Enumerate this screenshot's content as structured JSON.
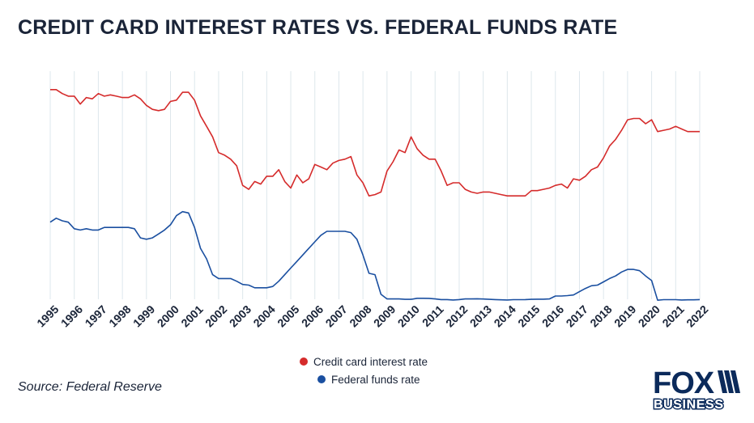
{
  "title": "CREDIT CARD INTEREST RATES VS. FEDERAL FUNDS RATE",
  "source": "Source: Federal Reserve",
  "logo": {
    "text": "FOX BUSINESS"
  },
  "colors": {
    "credit": "#d52b2b",
    "fed": "#1a4fa0",
    "grid": "#dde7ec",
    "text": "#1a2438"
  },
  "chart_data": {
    "type": "line",
    "title": "CREDIT CARD INTEREST RATES VS. FEDERAL FUNDS RATE",
    "xlabel": "",
    "ylabel": "",
    "xlim": [
      1995,
      2022
    ],
    "x_ticks": [
      "1995",
      "1996",
      "1997",
      "1998",
      "1999",
      "2000",
      "2001",
      "2002",
      "2003",
      "2004",
      "2005",
      "2006",
      "2007",
      "2008",
      "2009",
      "2010",
      "2011",
      "2012",
      "2013",
      "2014",
      "2015",
      "2016",
      "2017",
      "2018",
      "2019",
      "2020",
      "2021",
      "2022"
    ],
    "ylim": [
      0,
      18
    ],
    "y_axis_labels_shown": false,
    "grid": "vertical",
    "legend_position": "bottom-center",
    "series": [
      {
        "name": "Credit card interest rate",
        "color": "#d52b2b",
        "points": [
          [
            1995.0,
            16.1
          ],
          [
            1995.25,
            16.1
          ],
          [
            1995.5,
            15.8
          ],
          [
            1995.75,
            15.6
          ],
          [
            1996.0,
            15.6
          ],
          [
            1996.25,
            15.0
          ],
          [
            1996.5,
            15.5
          ],
          [
            1996.75,
            15.4
          ],
          [
            1997.0,
            15.8
          ],
          [
            1997.25,
            15.6
          ],
          [
            1997.5,
            15.7
          ],
          [
            1997.75,
            15.6
          ],
          [
            1998.0,
            15.5
          ],
          [
            1998.25,
            15.5
          ],
          [
            1998.5,
            15.7
          ],
          [
            1998.75,
            15.4
          ],
          [
            1999.0,
            14.9
          ],
          [
            1999.25,
            14.6
          ],
          [
            1999.5,
            14.5
          ],
          [
            1999.75,
            14.6
          ],
          [
            2000.0,
            15.2
          ],
          [
            2000.25,
            15.3
          ],
          [
            2000.5,
            15.9
          ],
          [
            2000.75,
            15.9
          ],
          [
            2001.0,
            15.3
          ],
          [
            2001.25,
            14.1
          ],
          [
            2001.5,
            13.3
          ],
          [
            2001.75,
            12.5
          ],
          [
            2002.0,
            11.3
          ],
          [
            2002.25,
            11.1
          ],
          [
            2002.5,
            10.8
          ],
          [
            2002.75,
            10.3
          ],
          [
            2003.0,
            8.8
          ],
          [
            2003.25,
            8.5
          ],
          [
            2003.5,
            9.1
          ],
          [
            2003.75,
            8.9
          ],
          [
            2004.0,
            9.5
          ],
          [
            2004.25,
            9.5
          ],
          [
            2004.5,
            10.0
          ],
          [
            2004.75,
            9.1
          ],
          [
            2005.0,
            8.6
          ],
          [
            2005.25,
            9.6
          ],
          [
            2005.5,
            9.0
          ],
          [
            2005.75,
            9.3
          ],
          [
            2006.0,
            10.4
          ],
          [
            2006.25,
            10.2
          ],
          [
            2006.5,
            10.0
          ],
          [
            2006.75,
            10.5
          ],
          [
            2007.0,
            10.7
          ],
          [
            2007.25,
            10.8
          ],
          [
            2007.5,
            11.0
          ],
          [
            2007.75,
            9.6
          ],
          [
            2008.0,
            9.0
          ],
          [
            2008.25,
            8.0
          ],
          [
            2008.5,
            8.1
          ],
          [
            2008.75,
            8.3
          ],
          [
            2009.0,
            9.9
          ],
          [
            2009.25,
            10.6
          ],
          [
            2009.5,
            11.5
          ],
          [
            2009.75,
            11.3
          ],
          [
            2010.0,
            12.5
          ],
          [
            2010.25,
            11.6
          ],
          [
            2010.5,
            11.1
          ],
          [
            2010.75,
            10.8
          ],
          [
            2011.0,
            10.8
          ],
          [
            2011.25,
            9.9
          ],
          [
            2011.5,
            8.8
          ],
          [
            2011.75,
            9.0
          ],
          [
            2012.0,
            9.0
          ],
          [
            2012.25,
            8.5
          ],
          [
            2012.5,
            8.3
          ],
          [
            2012.75,
            8.2
          ],
          [
            2013.0,
            8.3
          ],
          [
            2013.25,
            8.3
          ],
          [
            2013.5,
            8.2
          ],
          [
            2013.75,
            8.1
          ],
          [
            2014.0,
            8.0
          ],
          [
            2014.25,
            8.0
          ],
          [
            2014.5,
            8.0
          ],
          [
            2014.75,
            8.0
          ],
          [
            2015.0,
            8.4
          ],
          [
            2015.25,
            8.4
          ],
          [
            2015.5,
            8.5
          ],
          [
            2015.75,
            8.6
          ],
          [
            2016.0,
            8.8
          ],
          [
            2016.25,
            8.9
          ],
          [
            2016.5,
            8.6
          ],
          [
            2016.75,
            9.3
          ],
          [
            2017.0,
            9.2
          ],
          [
            2017.25,
            9.5
          ],
          [
            2017.5,
            10.0
          ],
          [
            2017.75,
            10.2
          ],
          [
            2018.0,
            10.9
          ],
          [
            2018.25,
            11.8
          ],
          [
            2018.5,
            12.3
          ],
          [
            2018.75,
            13.0
          ],
          [
            2019.0,
            13.8
          ],
          [
            2019.25,
            13.9
          ],
          [
            2019.5,
            13.9
          ],
          [
            2019.75,
            13.5
          ],
          [
            2020.0,
            13.8
          ],
          [
            2020.25,
            12.9
          ],
          [
            2020.5,
            13.0
          ],
          [
            2020.75,
            13.1
          ],
          [
            2021.0,
            13.3
          ],
          [
            2021.25,
            13.1
          ],
          [
            2021.5,
            12.9
          ],
          [
            2021.75,
            12.9
          ],
          [
            2022.0,
            12.9
          ]
        ]
      },
      {
        "name": "Federal funds rate",
        "color": "#1a4fa0",
        "points": [
          [
            1995.0,
            6.0
          ],
          [
            1995.25,
            6.3
          ],
          [
            1995.5,
            6.1
          ],
          [
            1995.75,
            6.0
          ],
          [
            1996.0,
            5.5
          ],
          [
            1996.25,
            5.4
          ],
          [
            1996.5,
            5.5
          ],
          [
            1996.75,
            5.4
          ],
          [
            1997.0,
            5.4
          ],
          [
            1997.25,
            5.6
          ],
          [
            1997.5,
            5.6
          ],
          [
            1997.75,
            5.6
          ],
          [
            1998.0,
            5.6
          ],
          [
            1998.25,
            5.6
          ],
          [
            1998.5,
            5.5
          ],
          [
            1998.75,
            4.8
          ],
          [
            1999.0,
            4.7
          ],
          [
            1999.25,
            4.8
          ],
          [
            1999.5,
            5.1
          ],
          [
            1999.75,
            5.4
          ],
          [
            2000.0,
            5.8
          ],
          [
            2000.25,
            6.5
          ],
          [
            2000.5,
            6.8
          ],
          [
            2000.75,
            6.7
          ],
          [
            2001.0,
            5.6
          ],
          [
            2001.25,
            4.0
          ],
          [
            2001.5,
            3.2
          ],
          [
            2001.75,
            2.0
          ],
          [
            2002.0,
            1.7
          ],
          [
            2002.25,
            1.7
          ],
          [
            2002.5,
            1.7
          ],
          [
            2002.75,
            1.5
          ],
          [
            2003.0,
            1.25
          ],
          [
            2003.25,
            1.2
          ],
          [
            2003.5,
            1.0
          ],
          [
            2003.75,
            1.0
          ],
          [
            2004.0,
            1.0
          ],
          [
            2004.25,
            1.1
          ],
          [
            2004.5,
            1.5
          ],
          [
            2004.75,
            2.0
          ],
          [
            2005.0,
            2.5
          ],
          [
            2005.25,
            3.0
          ],
          [
            2005.5,
            3.5
          ],
          [
            2005.75,
            4.0
          ],
          [
            2006.0,
            4.5
          ],
          [
            2006.25,
            5.0
          ],
          [
            2006.5,
            5.3
          ],
          [
            2006.75,
            5.3
          ],
          [
            2007.0,
            5.3
          ],
          [
            2007.25,
            5.3
          ],
          [
            2007.5,
            5.2
          ],
          [
            2007.75,
            4.7
          ],
          [
            2008.0,
            3.5
          ],
          [
            2008.25,
            2.1
          ],
          [
            2008.5,
            2.0
          ],
          [
            2008.75,
            0.5
          ],
          [
            2009.0,
            0.15
          ],
          [
            2009.25,
            0.15
          ],
          [
            2009.5,
            0.15
          ],
          [
            2009.75,
            0.12
          ],
          [
            2010.0,
            0.12
          ],
          [
            2010.25,
            0.2
          ],
          [
            2010.5,
            0.2
          ],
          [
            2010.75,
            0.19
          ],
          [
            2011.0,
            0.15
          ],
          [
            2011.25,
            0.1
          ],
          [
            2011.5,
            0.1
          ],
          [
            2011.75,
            0.07
          ],
          [
            2012.0,
            0.1
          ],
          [
            2012.25,
            0.15
          ],
          [
            2012.5,
            0.15
          ],
          [
            2012.75,
            0.16
          ],
          [
            2013.0,
            0.14
          ],
          [
            2013.25,
            0.12
          ],
          [
            2013.5,
            0.1
          ],
          [
            2013.75,
            0.08
          ],
          [
            2014.0,
            0.07
          ],
          [
            2014.25,
            0.09
          ],
          [
            2014.5,
            0.09
          ],
          [
            2014.75,
            0.1
          ],
          [
            2015.0,
            0.12
          ],
          [
            2015.25,
            0.13
          ],
          [
            2015.5,
            0.13
          ],
          [
            2015.75,
            0.15
          ],
          [
            2016.0,
            0.37
          ],
          [
            2016.25,
            0.37
          ],
          [
            2016.5,
            0.4
          ],
          [
            2016.75,
            0.45
          ],
          [
            2017.0,
            0.7
          ],
          [
            2017.25,
            0.95
          ],
          [
            2017.5,
            1.15
          ],
          [
            2017.75,
            1.2
          ],
          [
            2018.0,
            1.45
          ],
          [
            2018.25,
            1.7
          ],
          [
            2018.5,
            1.9
          ],
          [
            2018.75,
            2.2
          ],
          [
            2019.0,
            2.4
          ],
          [
            2019.25,
            2.4
          ],
          [
            2019.5,
            2.3
          ],
          [
            2019.75,
            1.9
          ],
          [
            2020.0,
            1.55
          ],
          [
            2020.25,
            0.05
          ],
          [
            2020.5,
            0.09
          ],
          [
            2020.75,
            0.09
          ],
          [
            2021.0,
            0.09
          ],
          [
            2021.25,
            0.07
          ],
          [
            2021.5,
            0.08
          ],
          [
            2021.75,
            0.08
          ],
          [
            2022.0,
            0.1
          ]
        ]
      }
    ]
  }
}
